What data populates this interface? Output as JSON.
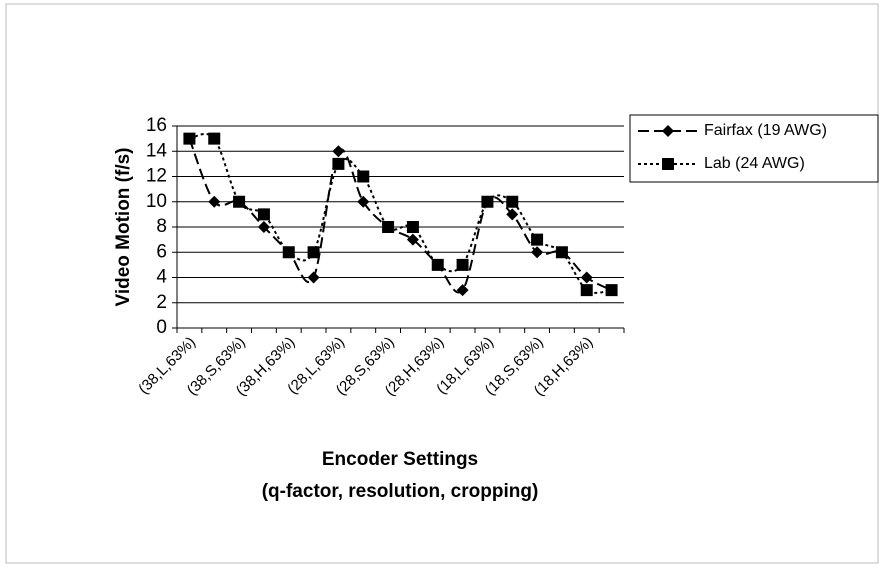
{
  "chart_data": {
    "type": "line",
    "ylabel": "Video Motion (f/s)",
    "xlabel": [
      "Encoder Settings",
      "(q-factor, resolution, cropping)"
    ],
    "categories": [
      "(38,L,63%)",
      null,
      "(38,S,63%)",
      null,
      "(38,H,63%)",
      null,
      "(28,L,63%)",
      null,
      "(28,S,63%)",
      null,
      "(28,H,63%)",
      null,
      "(18,L,63%)",
      null,
      "(18,S,63%)",
      null,
      "(18,H,63%)",
      null
    ],
    "series": [
      {
        "name": "Fairfax (19 AWG)",
        "color": "#000000",
        "marker": "diamond",
        "dash": "dash",
        "values": [
          15,
          10,
          10,
          8,
          6,
          4,
          14,
          10,
          8,
          7,
          5,
          3,
          10,
          9,
          6,
          6,
          4,
          3
        ]
      },
      {
        "name": "Lab (24 AWG)",
        "color": "#000000",
        "marker": "square",
        "dash": "dot",
        "values": [
          15,
          15,
          10,
          9,
          6,
          6,
          13,
          12,
          8,
          8,
          5,
          5,
          10,
          10,
          7,
          6,
          3,
          3
        ]
      }
    ],
    "ylim": [
      0,
      16
    ],
    "yticks": [
      0,
      2,
      4,
      6,
      8,
      10,
      12,
      14,
      16
    ],
    "grid": true,
    "legend": "right"
  }
}
